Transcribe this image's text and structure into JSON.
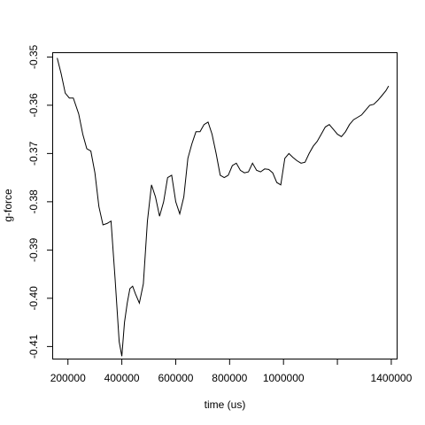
{
  "chart_data": {
    "type": "line",
    "title": "",
    "xlabel": "time (us)",
    "ylabel": "g-force",
    "xlim": [
      145000,
      1420000
    ],
    "ylim": [
      -0.4125,
      -0.3492
    ],
    "x_ticks": [
      200000,
      400000,
      600000,
      800000,
      1000000,
      1200000,
      1400000
    ],
    "x_tick_labels": [
      "200000",
      "400000",
      "600000",
      "800000",
      "1000000",
      "",
      "1400000"
    ],
    "y_ticks": [
      -0.35,
      -0.36,
      -0.37,
      -0.38,
      -0.39,
      -0.4,
      -0.41
    ],
    "y_tick_labels": [
      "-0.35",
      "-0.36",
      "-0.37",
      "-0.38",
      "-0.39",
      "-0.40",
      "-0.41"
    ],
    "grid": false,
    "legend": "none",
    "series": [
      {
        "x": [
          160000,
          175000,
          190000,
          205000,
          220000,
          240000,
          255000,
          270000,
          285000,
          300000,
          315000,
          330000,
          345000,
          360000,
          375000,
          390000,
          400000,
          410000,
          420000,
          430000,
          440000,
          450000,
          465000,
          480000,
          495000,
          510000,
          525000,
          540000,
          555000,
          570000,
          585000,
          600000,
          615000,
          630000,
          645000,
          660000,
          675000,
          690000,
          705000,
          720000,
          735000,
          750000,
          765000,
          780000,
          795000,
          810000,
          825000,
          840000,
          855000,
          870000,
          885000,
          900000,
          915000,
          930000,
          945000,
          960000,
          975000,
          990000,
          1005000,
          1020000,
          1035000,
          1050000,
          1065000,
          1080000,
          1095000,
          1110000,
          1125000,
          1140000,
          1155000,
          1170000,
          1185000,
          1200000,
          1215000,
          1230000,
          1245000,
          1260000,
          1275000,
          1290000,
          1305000,
          1320000,
          1335000,
          1350000,
          1365000,
          1380000,
          1390000
        ],
        "y": [
          -0.3502,
          -0.3535,
          -0.3575,
          -0.3585,
          -0.3585,
          -0.3618,
          -0.366,
          -0.369,
          -0.3695,
          -0.374,
          -0.381,
          -0.3848,
          -0.3845,
          -0.384,
          -0.396,
          -0.409,
          -0.412,
          -0.405,
          -0.401,
          -0.398,
          -0.3975,
          -0.399,
          -0.401,
          -0.397,
          -0.384,
          -0.3765,
          -0.379,
          -0.383,
          -0.38,
          -0.375,
          -0.3745,
          -0.38,
          -0.3825,
          -0.379,
          -0.371,
          -0.368,
          -0.3655,
          -0.3655,
          -0.364,
          -0.3635,
          -0.366,
          -0.37,
          -0.3745,
          -0.375,
          -0.3745,
          -0.3725,
          -0.372,
          -0.3735,
          -0.374,
          -0.3738,
          -0.372,
          -0.3735,
          -0.3738,
          -0.3732,
          -0.3733,
          -0.374,
          -0.376,
          -0.3765,
          -0.371,
          -0.37,
          -0.3708,
          -0.3715,
          -0.372,
          -0.3718,
          -0.37,
          -0.3685,
          -0.3675,
          -0.366,
          -0.3645,
          -0.364,
          -0.365,
          -0.366,
          -0.3665,
          -0.3655,
          -0.364,
          -0.363,
          -0.3625,
          -0.362,
          -0.361,
          -0.36,
          -0.3598,
          -0.359,
          -0.358,
          -0.357,
          -0.356
        ]
      }
    ]
  }
}
